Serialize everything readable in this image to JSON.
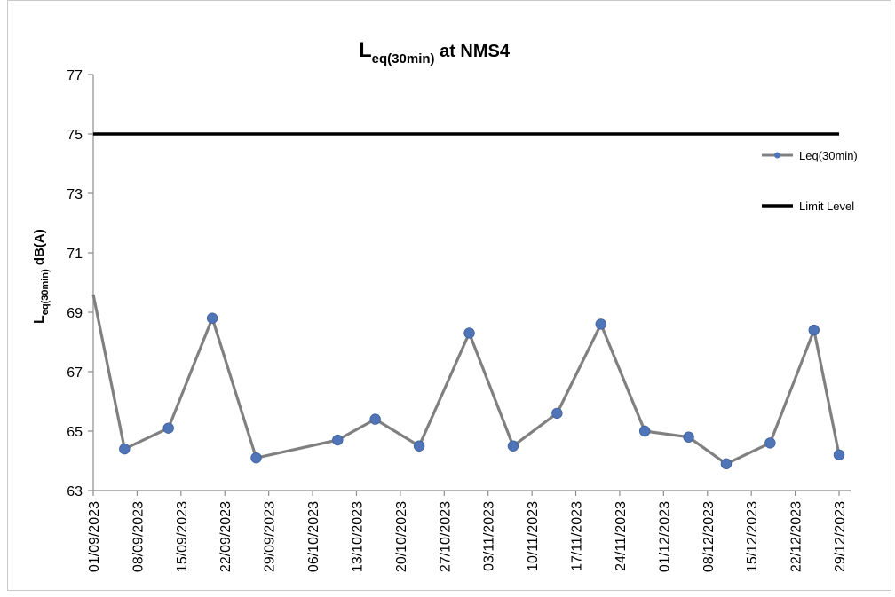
{
  "chart_data": {
    "type": "line",
    "title": {
      "main": "L",
      "sub": "eq(30min)",
      "rest": " at NMS4"
    },
    "ylabel": {
      "main": "L",
      "sub": "eq(30min)",
      "rest": " dB(A)"
    },
    "ylim": [
      63,
      77
    ],
    "yticks": [
      63,
      65,
      67,
      69,
      71,
      73,
      75,
      77
    ],
    "xticks": [
      "01/09/2023",
      "08/09/2023",
      "15/09/2023",
      "22/09/2023",
      "29/09/2023",
      "06/10/2023",
      "13/10/2023",
      "20/10/2023",
      "27/10/2023",
      "03/11/2023",
      "10/11/2023",
      "17/11/2023",
      "24/11/2023",
      "01/12/2023",
      "08/12/2023",
      "15/12/2023",
      "22/12/2023",
      "29/12/2023"
    ],
    "x_start": "01/09/2023",
    "x_end": "29/12/2023",
    "legend_position": "right",
    "series": [
      {
        "name": "Leq(30min)",
        "color": "#808080",
        "marker_color": "#4F74B7",
        "points": [
          {
            "x": "01/09/2023",
            "y": 69.6,
            "marker": false
          },
          {
            "x": "06/09/2023",
            "y": 64.4,
            "marker": true
          },
          {
            "x": "13/09/2023",
            "y": 65.1,
            "marker": true
          },
          {
            "x": "20/09/2023",
            "y": 68.8,
            "marker": true
          },
          {
            "x": "27/09/2023",
            "y": 64.1,
            "marker": true
          },
          {
            "x": "10/10/2023",
            "y": 64.7,
            "marker": true
          },
          {
            "x": "16/10/2023",
            "y": 65.4,
            "marker": true
          },
          {
            "x": "23/10/2023",
            "y": 64.5,
            "marker": true
          },
          {
            "x": "31/10/2023",
            "y": 68.3,
            "marker": true
          },
          {
            "x": "07/11/2023",
            "y": 64.5,
            "marker": true
          },
          {
            "x": "14/11/2023",
            "y": 65.6,
            "marker": true
          },
          {
            "x": "21/11/2023",
            "y": 68.6,
            "marker": true
          },
          {
            "x": "28/11/2023",
            "y": 65.0,
            "marker": true
          },
          {
            "x": "05/12/2023",
            "y": 64.8,
            "marker": true
          },
          {
            "x": "11/12/2023",
            "y": 63.9,
            "marker": true
          },
          {
            "x": "18/12/2023",
            "y": 64.6,
            "marker": true
          },
          {
            "x": "25/12/2023",
            "y": 68.4,
            "marker": true
          },
          {
            "x": "29/12/2023",
            "y": 64.2,
            "marker": true
          }
        ]
      },
      {
        "name": "Limit Level",
        "color": "#000000",
        "constant": 75
      }
    ]
  }
}
